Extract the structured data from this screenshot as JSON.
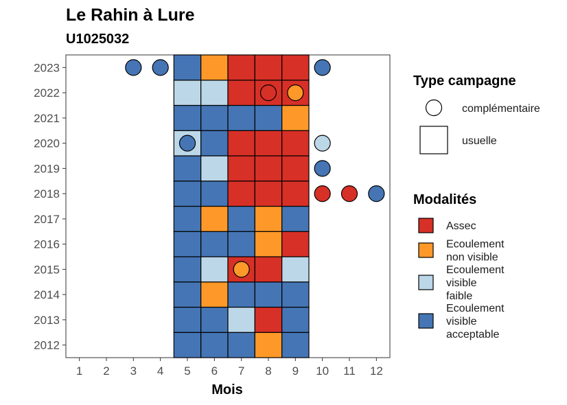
{
  "chart_data": {
    "type": "heatmap",
    "title": "Le Rahin à Lure",
    "subtitle": "U1025032",
    "xlabel": "Mois",
    "ylabel": "",
    "x_ticks": [
      "1",
      "2",
      "3",
      "4",
      "5",
      "6",
      "7",
      "8",
      "9",
      "10",
      "11",
      "12"
    ],
    "y_ticks": [
      "2012",
      "2013",
      "2014",
      "2015",
      "2016",
      "2017",
      "2018",
      "2019",
      "2020",
      "2021",
      "2022",
      "2023"
    ],
    "xlim": [
      0.5,
      12.5
    ],
    "ylim": [
      2011.5,
      2023.5
    ],
    "grid": false,
    "legend_position": "right",
    "colors": {
      "assec": "#d73027",
      "non_visible": "#fe9929",
      "visible_faible": "#bcd7e8",
      "visible_acceptable": "#4575b4"
    },
    "legend": {
      "type_title": "Type campagne",
      "type_items": [
        {
          "shape": "circle",
          "label": "complémentaire"
        },
        {
          "shape": "square",
          "label": "usuelle"
        }
      ],
      "mod_title": "Modalités",
      "mod_items": [
        {
          "key": "assec",
          "lines": [
            "Assec"
          ]
        },
        {
          "key": "non_visible",
          "lines": [
            "Ecoulement",
            "non visible"
          ]
        },
        {
          "key": "visible_faible",
          "lines": [
            "Ecoulement",
            "visible",
            "faible"
          ]
        },
        {
          "key": "visible_acceptable",
          "lines": [
            "Ecoulement",
            "visible",
            "acceptable"
          ]
        }
      ]
    },
    "usuelle": [
      {
        "year": 2012,
        "months": [
          "visible_acceptable",
          "visible_acceptable",
          "visible_acceptable",
          "non_visible",
          "visible_acceptable"
        ]
      },
      {
        "year": 2013,
        "months": [
          "visible_acceptable",
          "visible_acceptable",
          "visible_faible",
          "assec",
          "visible_acceptable"
        ]
      },
      {
        "year": 2014,
        "months": [
          "visible_acceptable",
          "non_visible",
          "visible_acceptable",
          "visible_acceptable",
          "visible_acceptable"
        ]
      },
      {
        "year": 2015,
        "months": [
          "visible_acceptable",
          "visible_faible",
          "assec",
          "assec",
          "visible_faible"
        ]
      },
      {
        "year": 2016,
        "months": [
          "visible_acceptable",
          "visible_acceptable",
          "visible_acceptable",
          "non_visible",
          "assec"
        ]
      },
      {
        "year": 2017,
        "months": [
          "visible_acceptable",
          "non_visible",
          "visible_acceptable",
          "non_visible",
          "visible_acceptable"
        ]
      },
      {
        "year": 2018,
        "months": [
          "visible_acceptable",
          "visible_acceptable",
          "assec",
          "assec",
          "assec"
        ]
      },
      {
        "year": 2019,
        "months": [
          "visible_acceptable",
          "visible_faible",
          "assec",
          "assec",
          "assec"
        ]
      },
      {
        "year": 2020,
        "months": [
          "visible_faible",
          "visible_acceptable",
          "assec",
          "assec",
          "assec"
        ]
      },
      {
        "year": 2021,
        "months": [
          "visible_acceptable",
          "visible_acceptable",
          "visible_acceptable",
          "visible_acceptable",
          "non_visible"
        ]
      },
      {
        "year": 2022,
        "months": [
          "visible_faible",
          "visible_faible",
          "assec",
          "assec",
          "assec"
        ]
      },
      {
        "year": 2023,
        "months": [
          "visible_acceptable",
          "non_visible",
          "assec",
          "assec",
          "assec"
        ]
      }
    ],
    "usuelle_first_month": 5,
    "complementaire": [
      {
        "year": 2023,
        "month": 3,
        "key": "visible_acceptable"
      },
      {
        "year": 2023,
        "month": 4,
        "key": "visible_acceptable"
      },
      {
        "year": 2023,
        "month": 10,
        "key": "visible_acceptable"
      },
      {
        "year": 2022,
        "month": 8,
        "key": "assec"
      },
      {
        "year": 2022,
        "month": 9,
        "key": "non_visible"
      },
      {
        "year": 2020,
        "month": 5,
        "key": "visible_acceptable"
      },
      {
        "year": 2020,
        "month": 10,
        "key": "visible_faible"
      },
      {
        "year": 2019,
        "month": 10,
        "key": "visible_acceptable"
      },
      {
        "year": 2018,
        "month": 10,
        "key": "assec"
      },
      {
        "year": 2018,
        "month": 11,
        "key": "assec"
      },
      {
        "year": 2018,
        "month": 12,
        "key": "visible_acceptable"
      },
      {
        "year": 2015,
        "month": 7,
        "key": "non_visible"
      }
    ]
  }
}
